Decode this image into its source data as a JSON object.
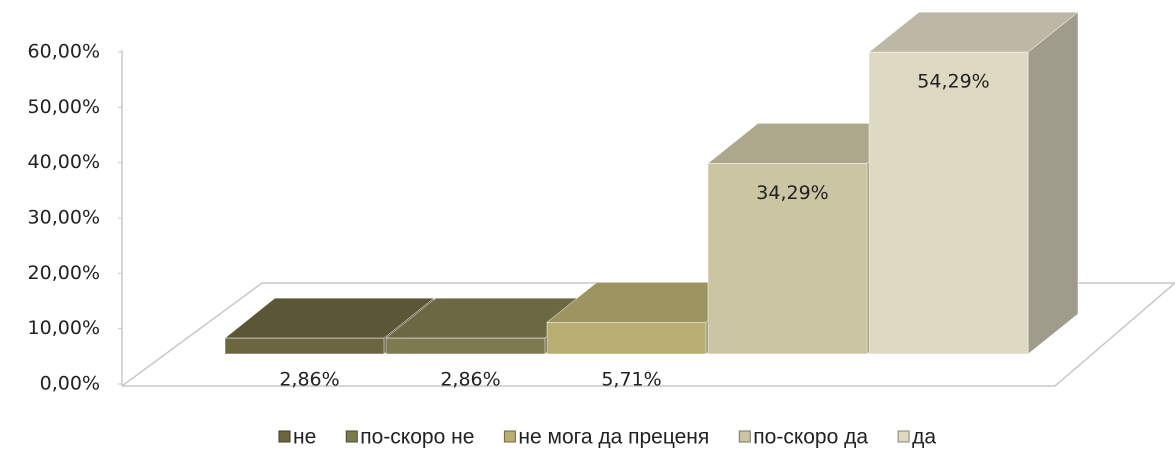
{
  "chart_data": {
    "type": "bar3d",
    "series": [
      {
        "name": "не",
        "color": "#6b6640",
        "values": [
          2.86
        ],
        "value_labels": [
          "2,86%"
        ]
      },
      {
        "name": "по-скоро не",
        "color": "#7e7a4f",
        "values": [
          2.86
        ],
        "value_labels": [
          "2,86%"
        ]
      },
      {
        "name": "не мога да преценя",
        "color": "#b9ae72",
        "values": [
          5.71
        ],
        "value_labels": [
          "5,71%"
        ]
      },
      {
        "name": "по-скоро да",
        "color": "#cbc5a3",
        "values": [
          34.29
        ],
        "value_labels": [
          "34,29%"
        ]
      },
      {
        "name": "да",
        "color": "#ded9c3",
        "values": [
          54.29
        ],
        "value_labels": [
          "54,29%"
        ]
      }
    ],
    "ylim": [
      0,
      60
    ],
    "yticks": [
      {
        "value": 0,
        "label": "0,00%"
      },
      {
        "value": 10,
        "label": "10,00%"
      },
      {
        "value": 20,
        "label": "20,00%"
      },
      {
        "value": 30,
        "label": "30,00%"
      },
      {
        "value": 40,
        "label": "40,00%"
      },
      {
        "value": 50,
        "label": "50,00%"
      },
      {
        "value": 60,
        "label": "60,00%"
      }
    ],
    "legend": "bottom"
  }
}
